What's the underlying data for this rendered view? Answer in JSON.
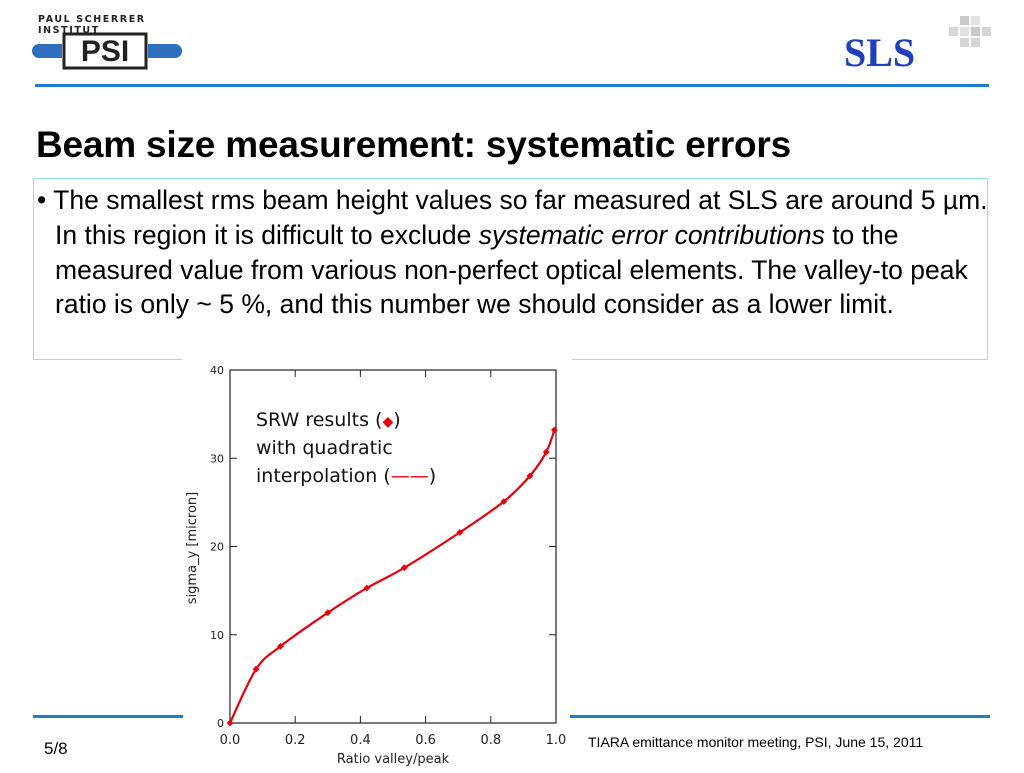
{
  "header": {
    "org_name": "PAUL SCHERRER INSTITUT",
    "psi_logo_text": "PSI",
    "sls_logo_text": "SLS"
  },
  "slide": {
    "title": "Beam size measurement: systematic errors",
    "bullet": {
      "marker": "•",
      "text_before": "The smallest rms beam height values so far measured at SLS are around 5 µm. In this region it is difficult to exclude ",
      "emphasis": "systematic error contributions",
      "text_after": " to the measured value from various non-perfect optical elements. The valley-to peak ratio is only ~ 5 %, and this number we should consider as a lower limit."
    }
  },
  "footer": {
    "page": "5/8",
    "meeting": "TIARA emittance monitor meeting, PSI, June 15, 2011"
  },
  "chart_data": {
    "type": "line",
    "xlabel": "Ratio  valley/peak",
    "ylabel": "sigma_y [micron]",
    "xlim": [
      0.0,
      1.0
    ],
    "ylim": [
      0,
      40
    ],
    "xticks": [
      "0.0",
      "0.2",
      "0.4",
      "0.6",
      "0.8",
      "1.0"
    ],
    "yticks": [
      "0",
      "10",
      "20",
      "30",
      "40"
    ],
    "legend": {
      "line1_prefix": "SRW results (",
      "line1_suffix": ")",
      "line2": "with quadratic",
      "line3_prefix": "interpolation (",
      "line3_suffix": ")"
    },
    "series": [
      {
        "color": "#e8000b",
        "markers": [
          {
            "x": 0.0,
            "y": 0.0
          },
          {
            "x": 0.08,
            "y": 6.1
          },
          {
            "x": 0.155,
            "y": 8.7
          },
          {
            "x": 0.3,
            "y": 12.5
          },
          {
            "x": 0.42,
            "y": 15.3
          },
          {
            "x": 0.535,
            "y": 17.6
          },
          {
            "x": 0.705,
            "y": 21.6
          },
          {
            "x": 0.84,
            "y": 25.1
          },
          {
            "x": 0.92,
            "y": 28.0
          },
          {
            "x": 0.97,
            "y": 30.7
          },
          {
            "x": 0.995,
            "y": 33.2
          }
        ]
      }
    ]
  },
  "colors": {
    "accent_blue": "#1e7fc6",
    "logo_blue": "#1f3fbf",
    "curve_red": "#e8000b",
    "textbox_border": "#8fe8e0"
  }
}
